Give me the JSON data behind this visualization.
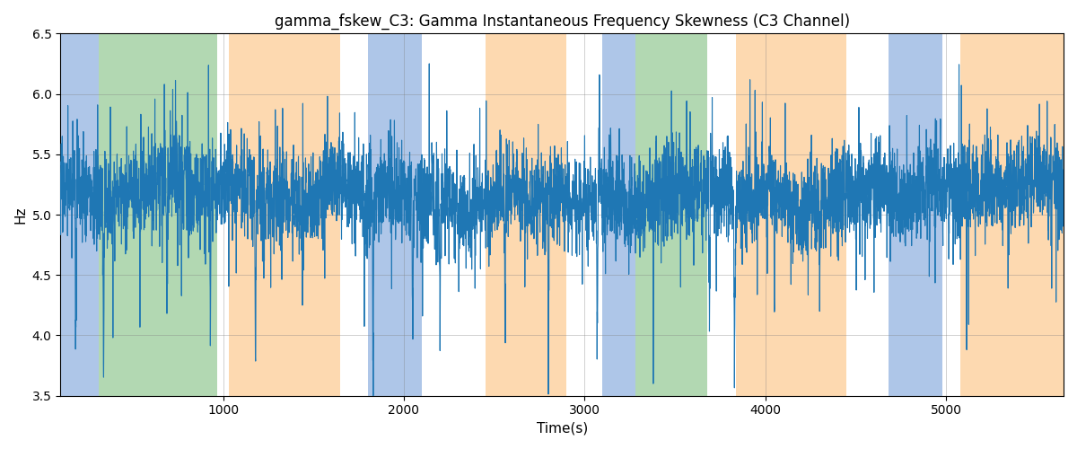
{
  "title": "gamma_fskew_C3: Gamma Instantaneous Frequency Skewness (C3 Channel)",
  "xlabel": "Time(s)",
  "ylabel": "Hz",
  "ylim": [
    3.5,
    6.5
  ],
  "xlim": [
    100,
    5650
  ],
  "line_color": "#1f77b4",
  "line_width": 0.8,
  "yticks": [
    3.5,
    4.0,
    4.5,
    5.0,
    5.5,
    6.0,
    6.5
  ],
  "xticks": [
    1000,
    2000,
    3000,
    4000,
    5000
  ],
  "background_regions": [
    {
      "xstart": 100,
      "xend": 310,
      "color": "#aec6e8"
    },
    {
      "xstart": 310,
      "xend": 970,
      "color": "#b2d8b2"
    },
    {
      "xstart": 970,
      "xend": 1030,
      "color": "white"
    },
    {
      "xstart": 1030,
      "xend": 1650,
      "color": "#fdd9b0"
    },
    {
      "xstart": 1650,
      "xend": 1800,
      "color": "white"
    },
    {
      "xstart": 1800,
      "xend": 2100,
      "color": "#aec6e8"
    },
    {
      "xstart": 2100,
      "xend": 2450,
      "color": "white"
    },
    {
      "xstart": 2450,
      "xend": 2900,
      "color": "#fdd9b0"
    },
    {
      "xstart": 2900,
      "xend": 3100,
      "color": "white"
    },
    {
      "xstart": 3100,
      "xend": 3280,
      "color": "#aec6e8"
    },
    {
      "xstart": 3280,
      "xend": 3680,
      "color": "#b2d8b2"
    },
    {
      "xstart": 3680,
      "xend": 3840,
      "color": "white"
    },
    {
      "xstart": 3840,
      "xend": 4450,
      "color": "#fdd9b0"
    },
    {
      "xstart": 4450,
      "xend": 4680,
      "color": "white"
    },
    {
      "xstart": 4680,
      "xend": 4980,
      "color": "#aec6e8"
    },
    {
      "xstart": 4980,
      "xend": 5080,
      "color": "white"
    },
    {
      "xstart": 5080,
      "xend": 5650,
      "color": "#fdd9b0"
    }
  ],
  "seed": 17,
  "n_points": 5500,
  "x_start": 100,
  "x_end": 5650
}
